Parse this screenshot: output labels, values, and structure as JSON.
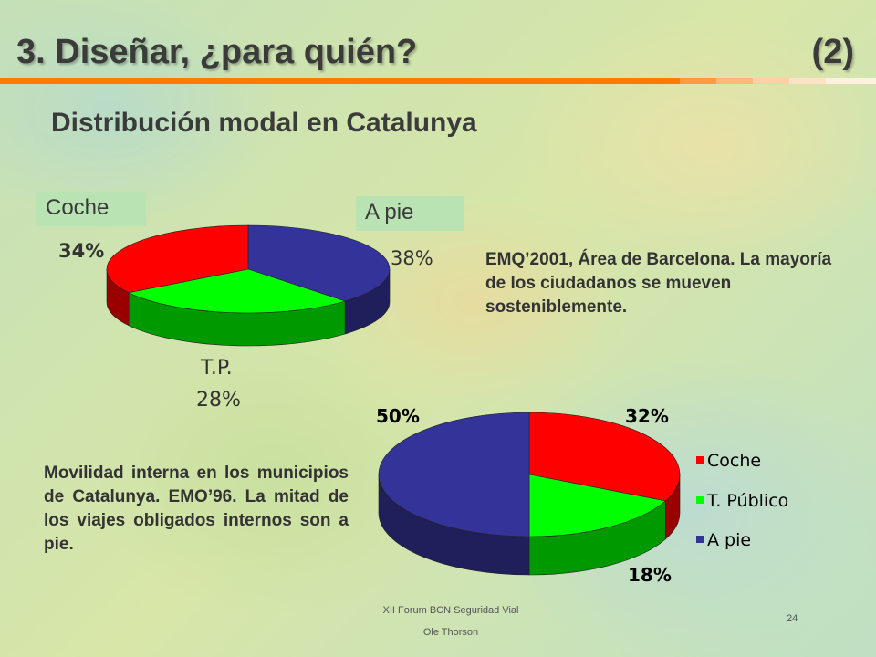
{
  "slide": {
    "title": "3. Diseñar, ¿para quién?",
    "slide_number": "(2)",
    "subtitle": "Distribución modal en Catalunya",
    "footer_line1": "XII Forum BCN Seguridad Vial",
    "footer_line2": "Ole Thorson",
    "page": "24"
  },
  "notes": {
    "top": "EMQ’2001, Área de Barcelona. La mayoría de los ciudadanos se mueven sosteniblemente.",
    "bottom": "Movilidad interna en los municipios de Catalunya. EMO’96. La mitad de los viajes obligados internos son a pie."
  },
  "colors": {
    "coche": "#ff0000",
    "publico": "#00ff00",
    "pie": "#333399",
    "rule": "#ff8000"
  },
  "chart_data": [
    {
      "type": "pie",
      "title": "",
      "categories": [
        "Coche",
        "T.P.",
        "A pie"
      ],
      "values": [
        34,
        28,
        38
      ],
      "labels": [
        "34%",
        "28%",
        "38%"
      ],
      "label_boxes": [
        "Coche",
        "A pie"
      ],
      "tp_label": "T.P.",
      "legend": "none",
      "style": "3d"
    },
    {
      "type": "pie",
      "title": "",
      "categories": [
        "Coche",
        "T. Público",
        "A pie"
      ],
      "values": [
        32,
        18,
        50
      ],
      "labels": [
        "32%",
        "18%",
        "50%"
      ],
      "legend": "right",
      "style": "3d"
    }
  ]
}
